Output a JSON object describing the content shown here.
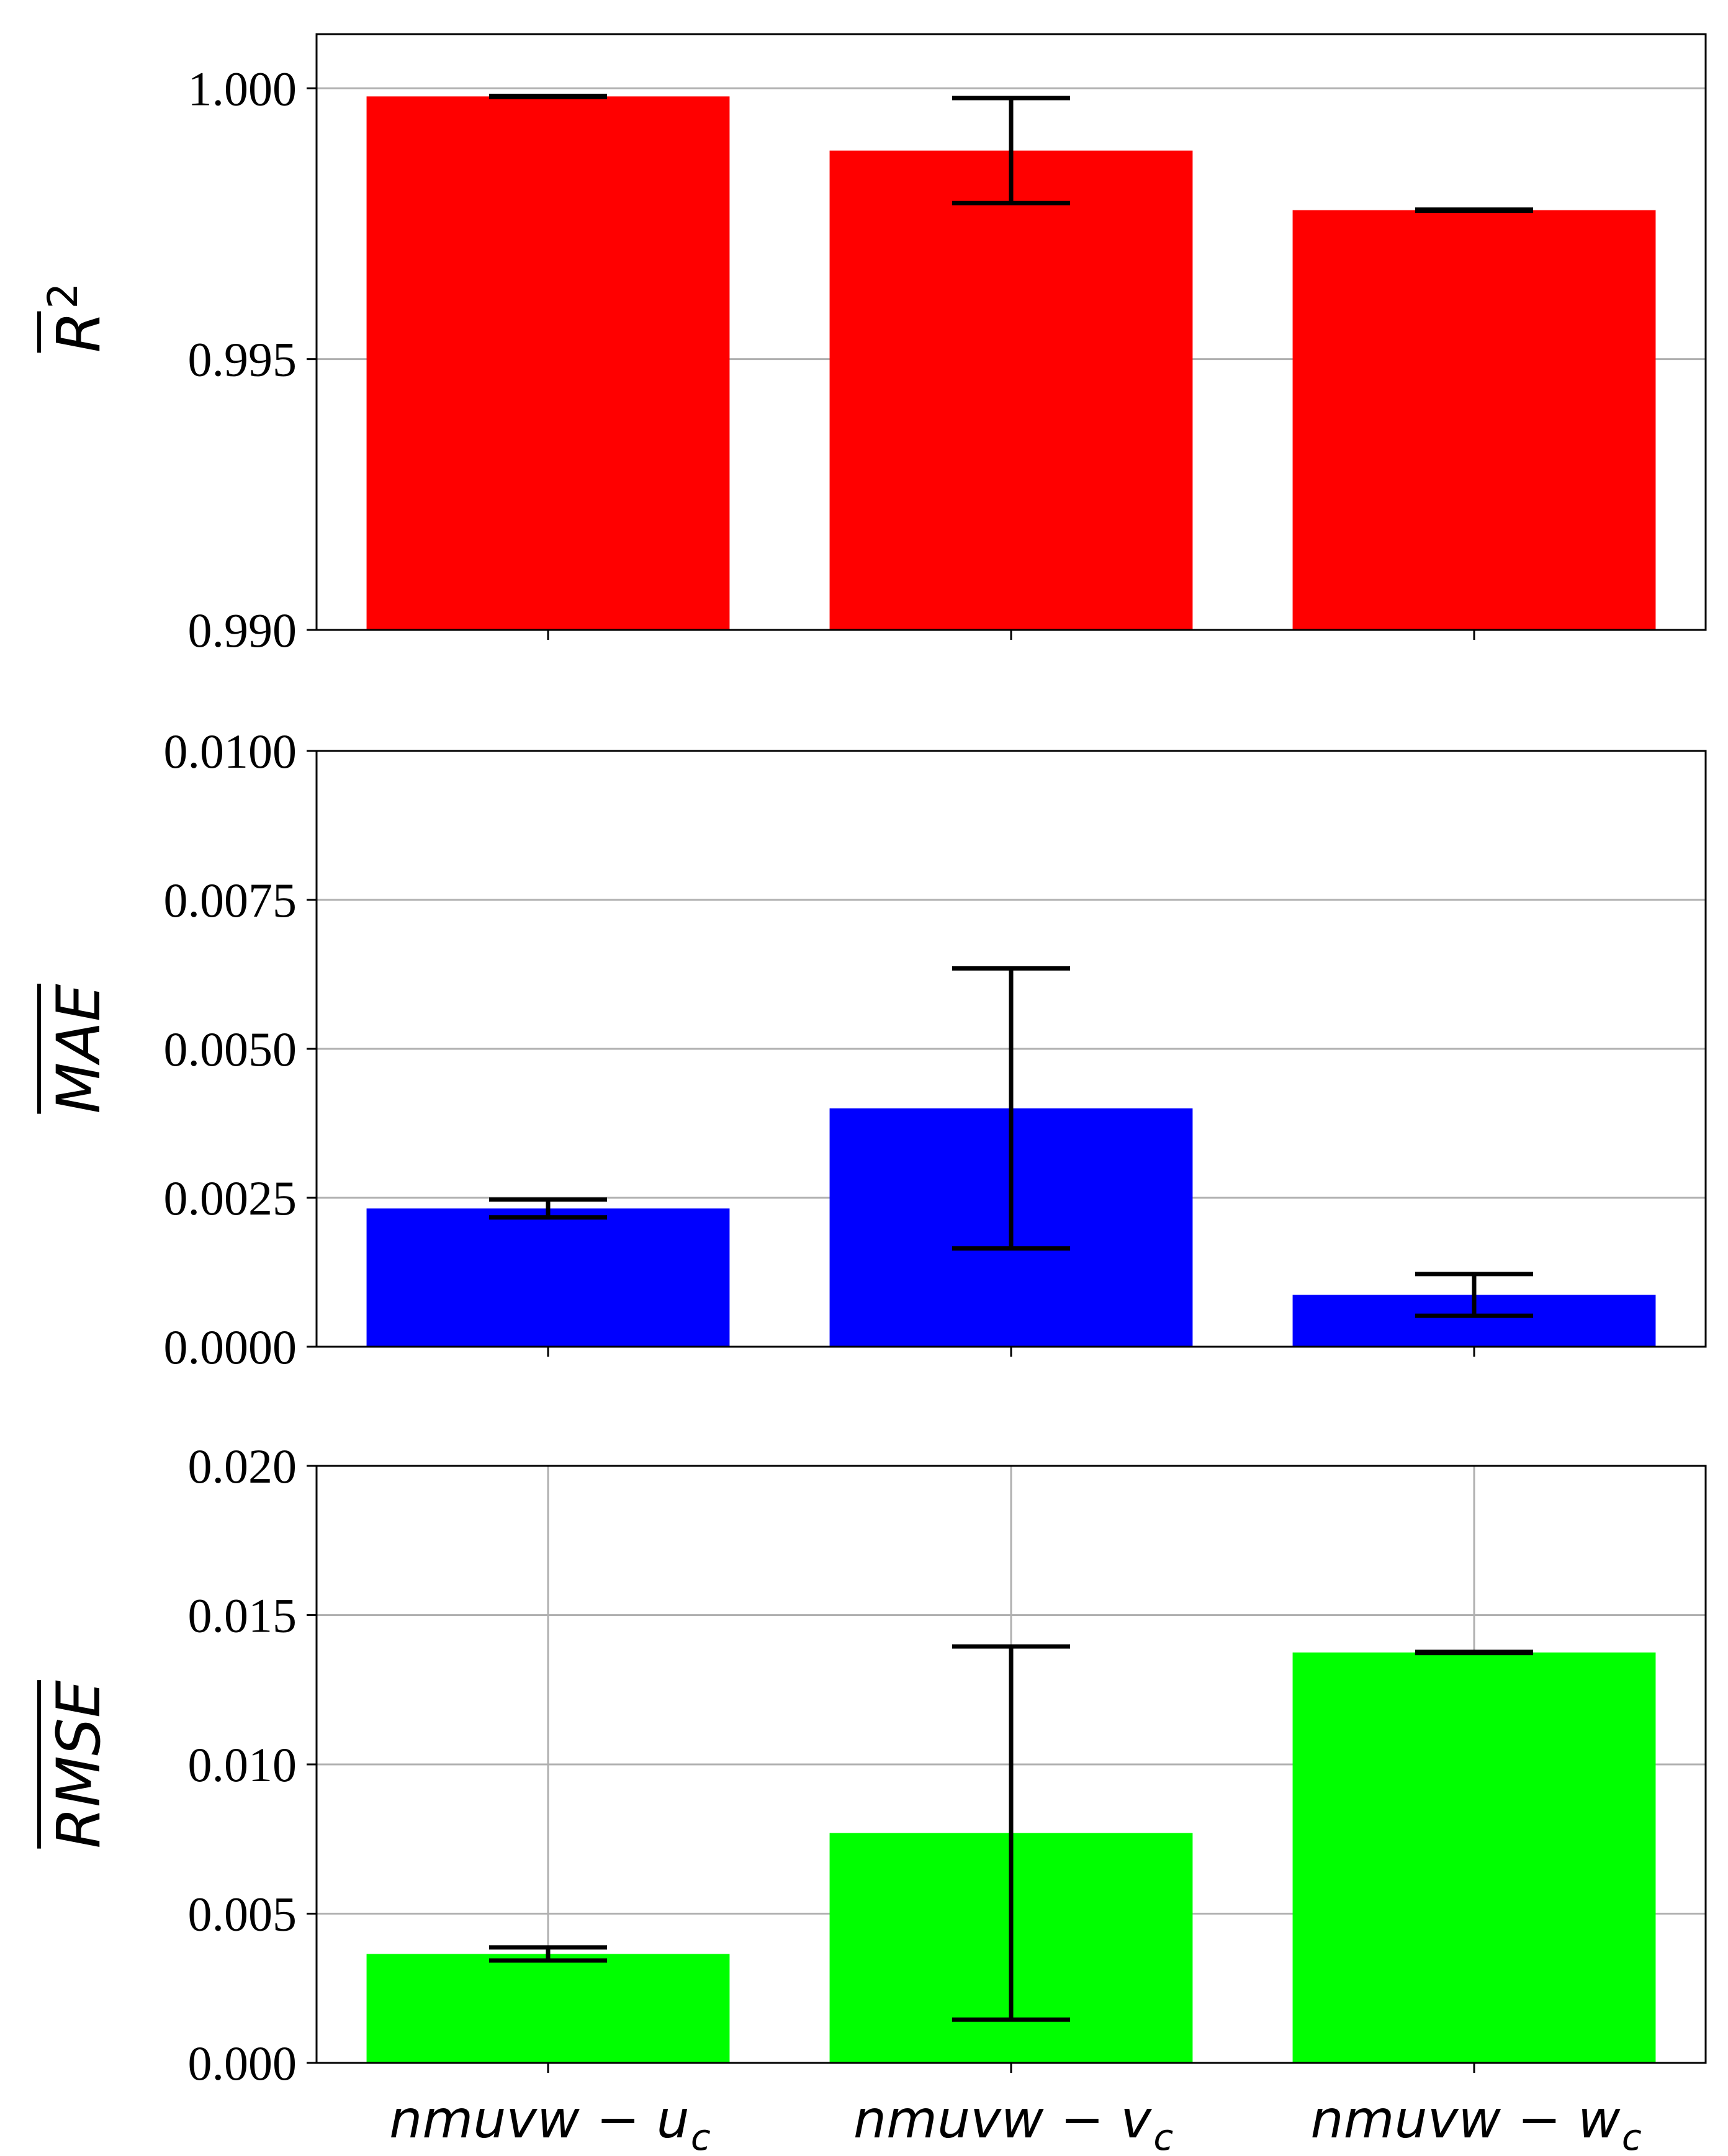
{
  "chart_data": [
    {
      "type": "bar",
      "ylabel": "R",
      "ylabel_sup": "2",
      "ylabel_overline": true,
      "color": "#ff0000",
      "categories": [
        "nmuvw − u",
        "nmuvw − v",
        "nmuvw − w"
      ],
      "categories_subscript": [
        "c",
        "c",
        "c"
      ],
      "values": [
        0.99985,
        0.99885,
        0.99775
      ],
      "errors": [
        1e-05,
        0.00097,
        1e-05
      ],
      "ylim": [
        0.99,
        1.001
      ],
      "yticks": [
        "0.990",
        "0.995",
        "1.000"
      ],
      "ytick_values": [
        0.99,
        0.995,
        1.0
      ],
      "grid": "y",
      "show_xticklabels": false
    },
    {
      "type": "bar",
      "ylabel": "MAE",
      "ylabel_overline": true,
      "color": "#0000ff",
      "categories": [
        "nmuvw − u",
        "nmuvw − v",
        "nmuvw − w"
      ],
      "categories_subscript": [
        "c",
        "c",
        "c"
      ],
      "values": [
        0.00232,
        0.004,
        0.00087
      ],
      "errors": [
        0.00015,
        0.00235,
        0.00035
      ],
      "ylim": [
        0.0,
        0.01
      ],
      "yticks": [
        "0.0000",
        "0.0025",
        "0.0050",
        "0.0075",
        "0.0100"
      ],
      "ytick_values": [
        0.0,
        0.0025,
        0.005,
        0.0075,
        0.01
      ],
      "grid": "y",
      "show_xticklabels": false
    },
    {
      "type": "bar",
      "ylabel": "RMSE",
      "ylabel_overline": true,
      "color": "#00ff00",
      "categories": [
        "nmuvw − u",
        "nmuvw − v",
        "nmuvw − w"
      ],
      "categories_subscript": [
        "c",
        "c",
        "c"
      ],
      "values": [
        0.00365,
        0.0077,
        0.01375
      ],
      "errors": [
        0.00022,
        0.00625,
        2e-05
      ],
      "ylim": [
        0.0,
        0.02
      ],
      "yticks": [
        "0.000",
        "0.005",
        "0.010",
        "0.015",
        "0.020"
      ],
      "ytick_values": [
        0.0,
        0.005,
        0.01,
        0.015,
        0.02
      ],
      "grid": "both",
      "show_xticklabels": true
    }
  ]
}
